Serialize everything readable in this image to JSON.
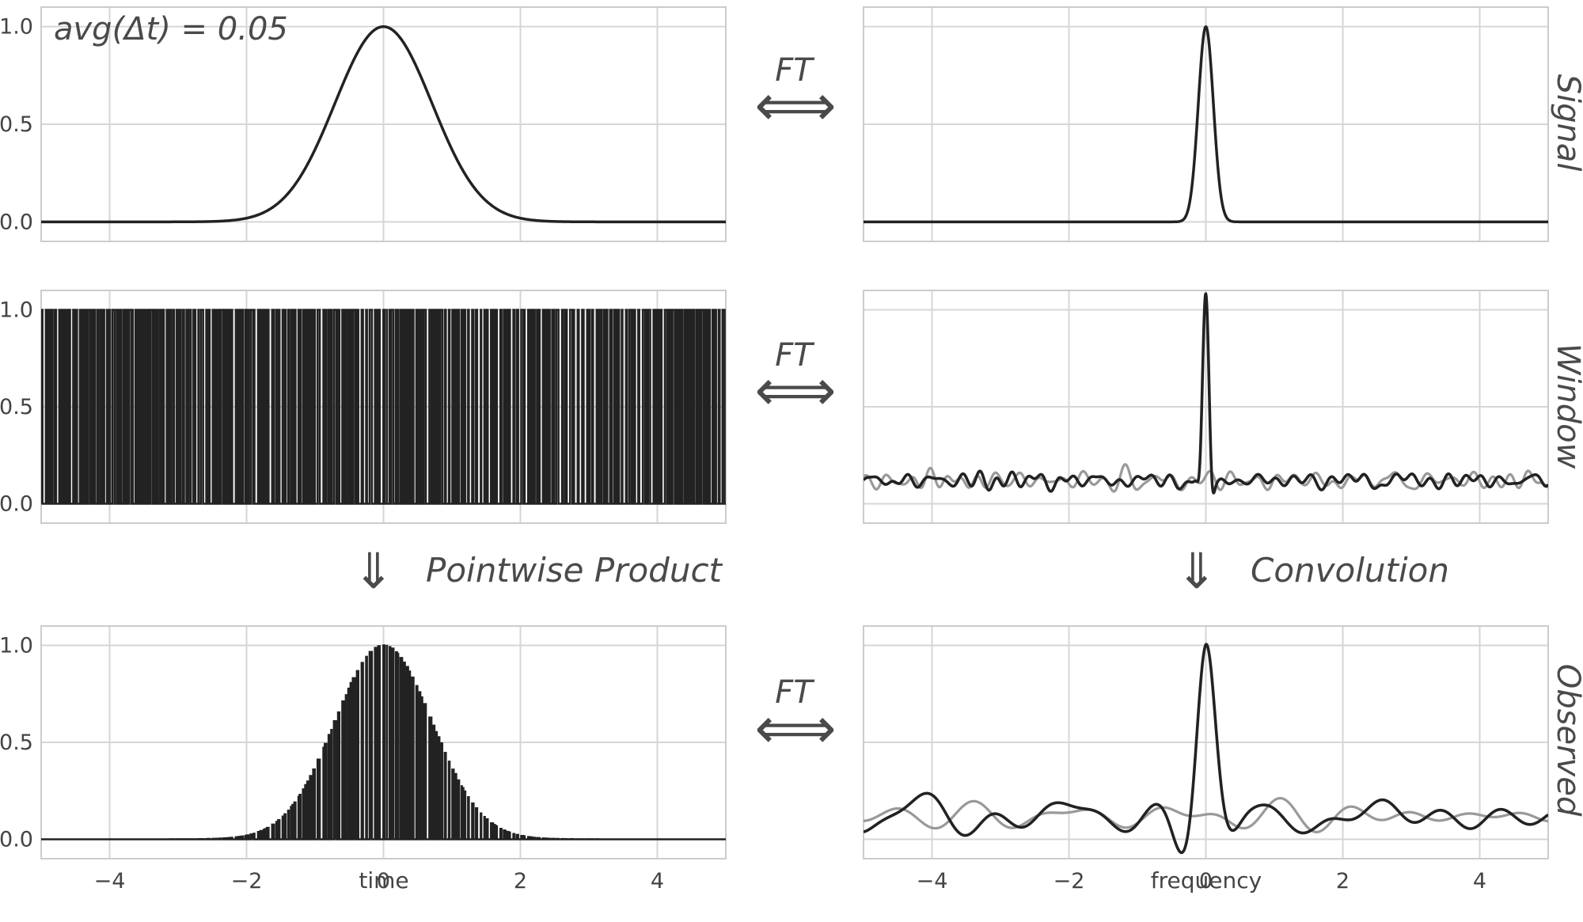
{
  "figure": {
    "annotation": "avg(Δt) = 0.05",
    "ft_label": "FT",
    "arrow_horizontal": "⟺",
    "arrow_down": "⇓",
    "pointwise_label": "Pointwise Product",
    "convolution_label": "Convolution",
    "row_labels": [
      "Signal",
      "Window",
      "Observed"
    ],
    "xlabel_time": "time",
    "xlabel_frequency": "frequency"
  },
  "chart_data": [
    {
      "panel": "signal-time",
      "type": "line",
      "title": "",
      "xlabel": "",
      "ylabel": "",
      "xlim": [
        -5,
        5
      ],
      "ylim": [
        -0.1,
        1.1
      ],
      "yticks": [
        0.0,
        0.5,
        1.0
      ],
      "ytick_labels": [
        "0.0",
        "0.5",
        "1.0"
      ],
      "xticks": [
        -4,
        -2,
        0,
        2,
        4
      ],
      "grid": true,
      "color": "#222222",
      "series": [
        {
          "function": "gaussian",
          "amplitude": 1.0,
          "center": 0,
          "sigma": 0.71
        }
      ]
    },
    {
      "panel": "signal-frequency",
      "type": "line",
      "title": "",
      "xlabel": "",
      "ylabel": "",
      "xlim": [
        -5,
        5
      ],
      "ylim": [
        -0.1,
        1.1
      ],
      "xticks": [
        -4,
        -2,
        0,
        2,
        4
      ],
      "grid": true,
      "color": "#222222",
      "series": [
        {
          "function": "gaussian",
          "amplitude": 1.0,
          "center": 0,
          "sigma": 0.11
        }
      ]
    },
    {
      "panel": "window-time",
      "type": "line",
      "title": "",
      "xlabel": "",
      "ylabel": "",
      "xlim": [
        -5,
        5
      ],
      "ylim": [
        -0.1,
        1.1
      ],
      "yticks": [
        0.0,
        0.5,
        1.0
      ],
      "ytick_labels": [
        "0.0",
        "0.5",
        "1.0"
      ],
      "xticks": [
        -4,
        -2,
        0,
        2,
        4
      ],
      "grid": true,
      "color": "#222222",
      "series": [
        {
          "function": "random_binary_window",
          "values": [
            0,
            1
          ],
          "mean_spacing": 0.05
        }
      ]
    },
    {
      "panel": "window-frequency",
      "type": "line",
      "title": "",
      "xlabel": "",
      "ylabel": "",
      "xlim": [
        -5,
        5
      ],
      "ylim": [
        -0.1,
        1.1
      ],
      "xticks": [
        -4,
        -2,
        0,
        2,
        4
      ],
      "grid": true,
      "colors": [
        "#999999",
        "#222222"
      ],
      "series": [
        {
          "part": "imaginary",
          "peak": 0.0,
          "noise_level": 0.07
        },
        {
          "part": "real",
          "peak": 1.05,
          "noise_level": 0.07
        }
      ]
    },
    {
      "panel": "observed-time",
      "type": "line",
      "title": "",
      "xlabel": "time",
      "ylabel": "",
      "xlim": [
        -5,
        5
      ],
      "ylim": [
        -0.1,
        1.1
      ],
      "yticks": [
        0.0,
        0.5,
        1.0
      ],
      "ytick_labels": [
        "0.0",
        "0.5",
        "1.0"
      ],
      "xticks": [
        -4,
        -2,
        0,
        2,
        4
      ],
      "xtick_labels": [
        "−4",
        "−2",
        "0",
        "2",
        "4"
      ],
      "grid": true,
      "color": "#222222",
      "series": [
        {
          "function": "gaussian_times_window",
          "amplitude": 1.0,
          "sigma": 0.71
        }
      ]
    },
    {
      "panel": "observed-frequency",
      "type": "line",
      "title": "",
      "xlabel": "frequency",
      "ylabel": "",
      "xlim": [
        -5,
        5
      ],
      "ylim": [
        -0.1,
        1.1
      ],
      "xticks": [
        -4,
        -2,
        0,
        2,
        4
      ],
      "xtick_labels": [
        "−4",
        "−2",
        "0",
        "2",
        "4"
      ],
      "grid": true,
      "colors": [
        "#999999",
        "#222222"
      ],
      "series": [
        {
          "part": "imaginary",
          "peak": 0.0,
          "noise_level": 0.1
        },
        {
          "part": "real",
          "peak": 1.05,
          "noise_level": 0.1
        }
      ]
    }
  ]
}
